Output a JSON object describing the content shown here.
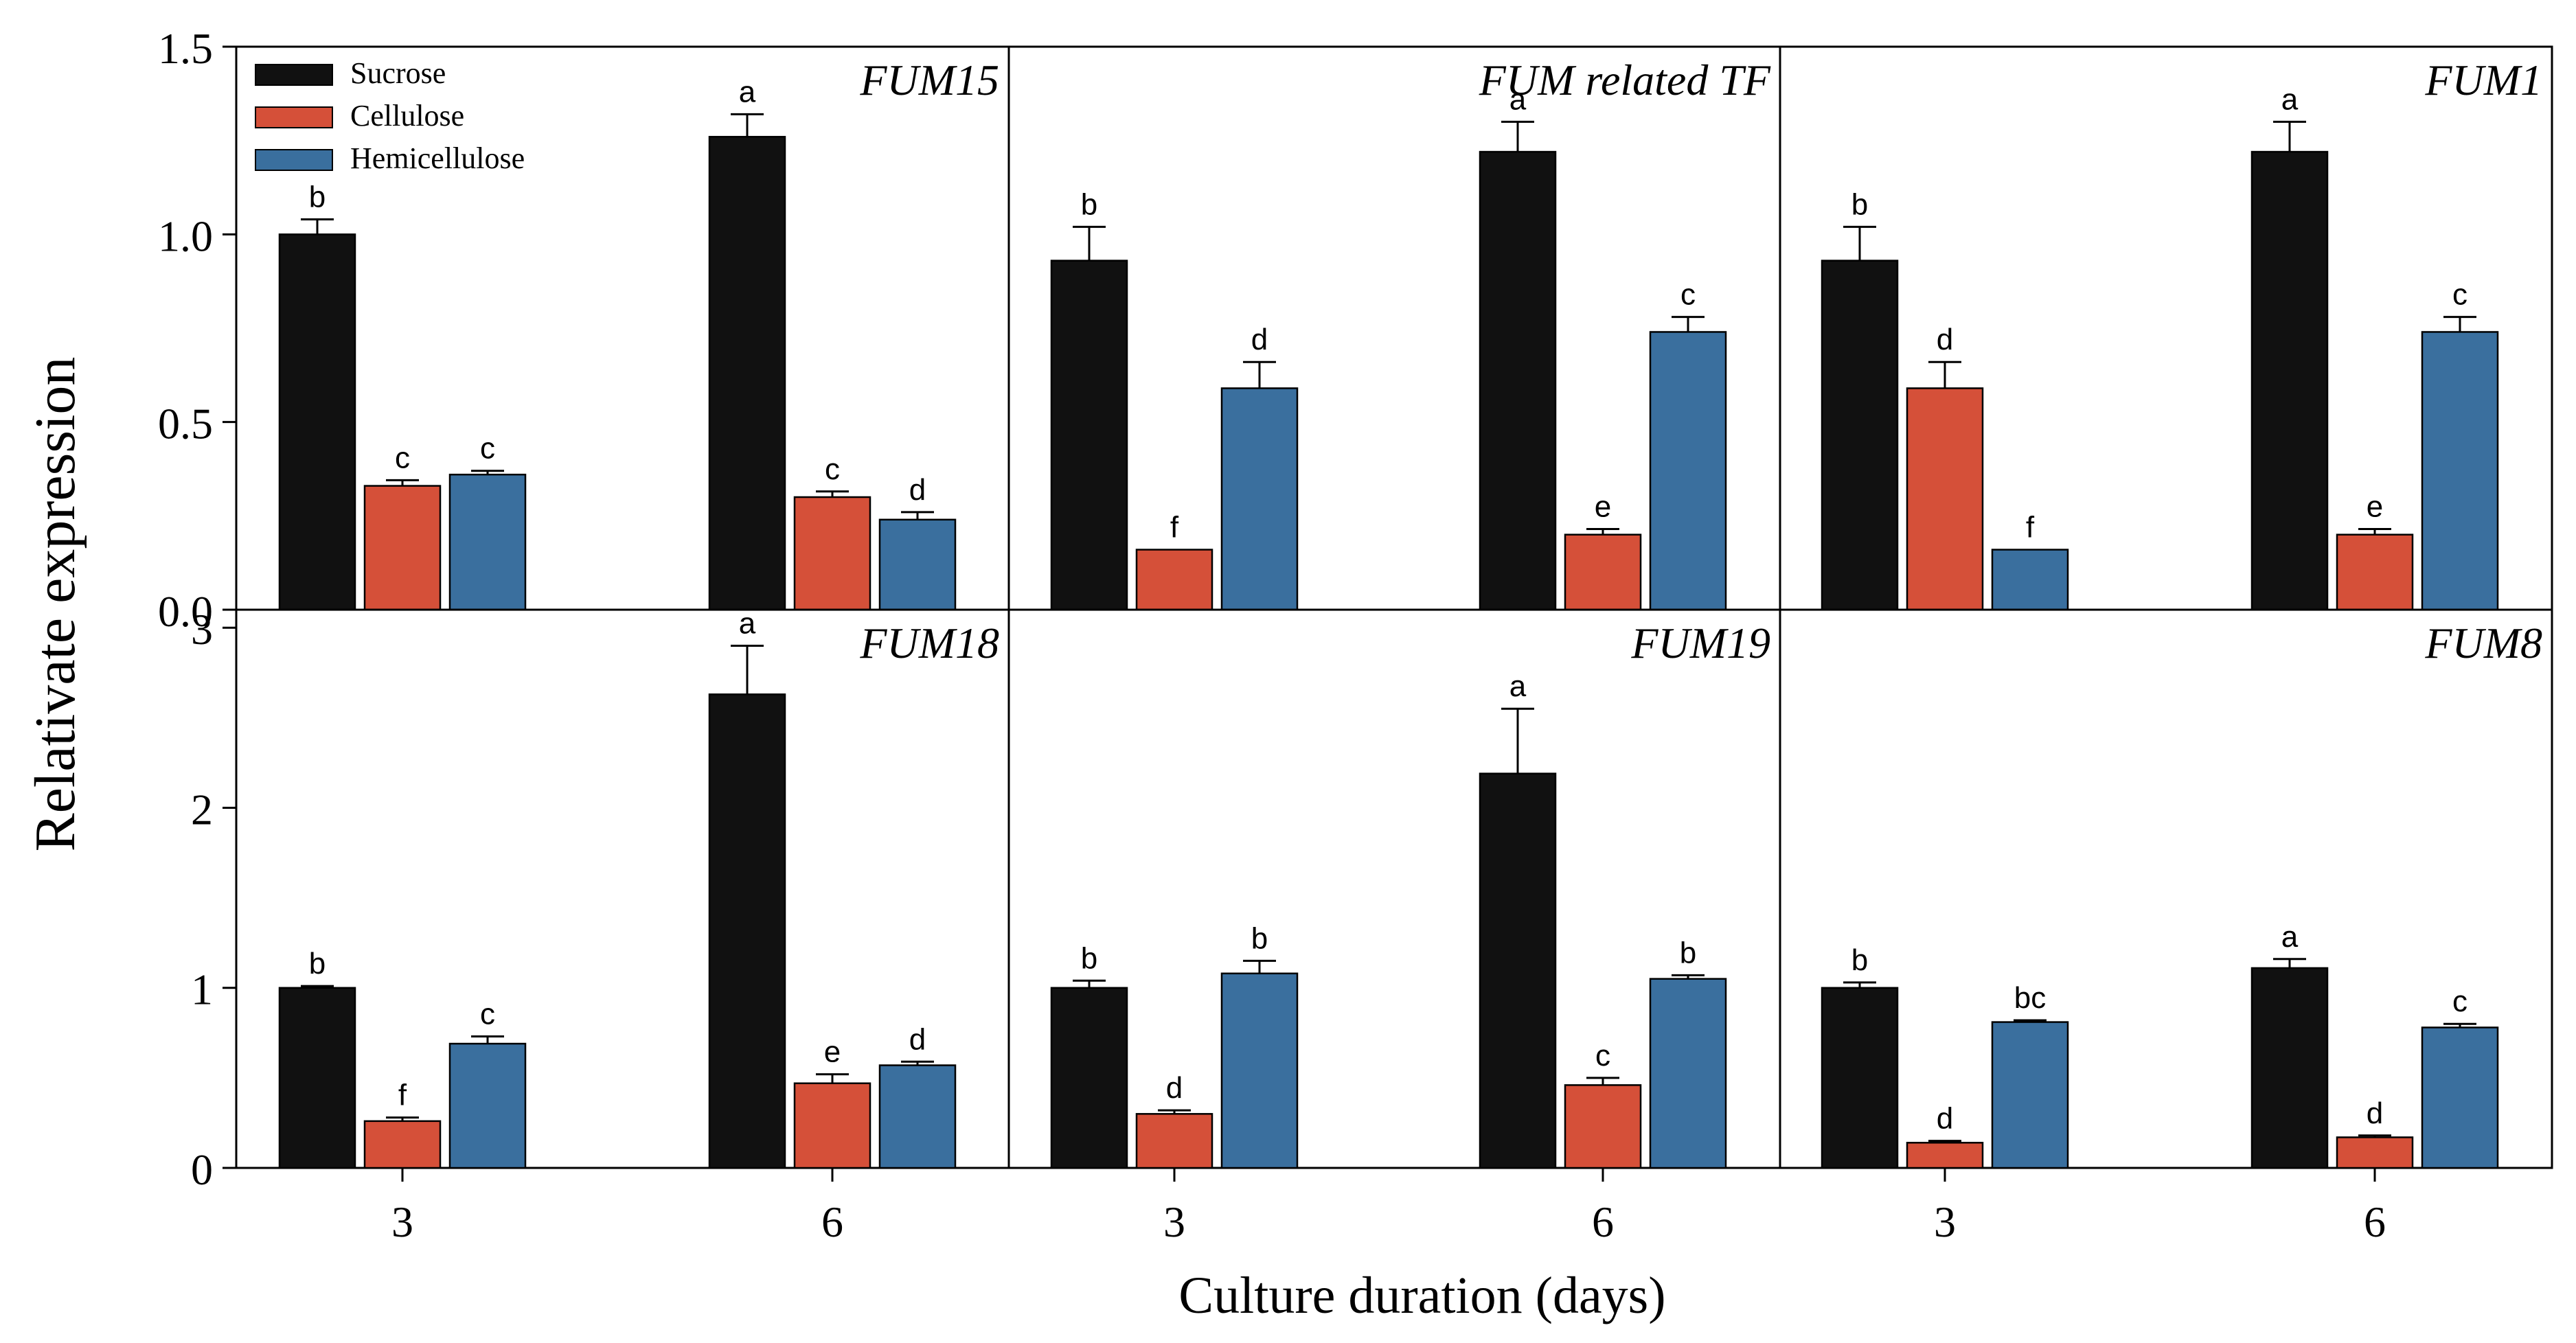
{
  "chart_data": {
    "type": "bar",
    "ylabel": "Relativate expression",
    "xlabel": "Culture duration (days)",
    "legend_position": "top-left",
    "categories": [
      "3",
      "6"
    ],
    "series_names": [
      "Sucrose",
      "Cellulose",
      "Hemicellulose"
    ],
    "colors": {
      "Sucrose": "#111111",
      "Cellulose": "#D55039",
      "Hemicellulose": "#3A6F9E"
    },
    "rows": [
      {
        "ylim": [
          0,
          1.5
        ],
        "yticks": [
          "0.0",
          "0.5",
          "1.0",
          "1.5"
        ],
        "panels": [
          {
            "title": "FUM15",
            "series": [
              {
                "name": "Sucrose",
                "values": [
                  1.0,
                  1.26
                ],
                "errors": [
                  0.04,
                  0.06
                ],
                "letters": [
                  "b",
                  "a"
                ]
              },
              {
                "name": "Cellulose",
                "values": [
                  0.33,
                  0.3
                ],
                "errors": [
                  0.015,
                  0.015
                ],
                "letters": [
                  "c",
                  "c"
                ]
              },
              {
                "name": "Hemicellulose",
                "values": [
                  0.36,
                  0.24
                ],
                "errors": [
                  0.01,
                  0.02
                ],
                "letters": [
                  "c",
                  "d"
                ]
              }
            ]
          },
          {
            "title": "FUM related TF",
            "series": [
              {
                "name": "Sucrose",
                "values": [
                  0.93,
                  1.22
                ],
                "errors": [
                  0.09,
                  0.08
                ],
                "letters": [
                  "b",
                  "a"
                ]
              },
              {
                "name": "Cellulose",
                "values": [
                  0.16,
                  0.2
                ],
                "errors": [
                  0.0,
                  0.015
                ],
                "letters": [
                  "f",
                  "e"
                ]
              },
              {
                "name": "Hemicellulose",
                "values": [
                  0.59,
                  0.74
                ],
                "errors": [
                  0.07,
                  0.04
                ],
                "letters": [
                  "d",
                  "c"
                ]
              }
            ]
          },
          {
            "title": "FUM1",
            "series": [
              {
                "name": "Sucrose",
                "values": [
                  0.93,
                  1.22
                ],
                "errors": [
                  0.09,
                  0.08
                ],
                "letters": [
                  "b",
                  "a"
                ]
              },
              {
                "name": "Cellulose",
                "values": [
                  0.59,
                  0.2
                ],
                "errors": [
                  0.07,
                  0.015
                ],
                "letters": [
                  "d",
                  "e"
                ]
              },
              {
                "name": "Hemicellulose",
                "values": [
                  0.16,
                  0.74
                ],
                "errors": [
                  0.0,
                  0.04
                ],
                "letters": [
                  "f",
                  "c"
                ]
              }
            ]
          }
        ]
      },
      {
        "ylim": [
          0,
          3.1
        ],
        "yticks": [
          "0",
          "1",
          "2",
          "3"
        ],
        "panels": [
          {
            "title": "FUM18",
            "series": [
              {
                "name": "Sucrose",
                "values": [
                  1.0,
                  2.63
                ],
                "errors": [
                  0.01,
                  0.27
                ],
                "letters": [
                  "b",
                  "a"
                ]
              },
              {
                "name": "Cellulose",
                "values": [
                  0.26,
                  0.47
                ],
                "errors": [
                  0.02,
                  0.05
                ],
                "letters": [
                  "f",
                  "e"
                ]
              },
              {
                "name": "Hemicellulose",
                "values": [
                  0.69,
                  0.57
                ],
                "errors": [
                  0.04,
                  0.02
                ],
                "letters": [
                  "c",
                  "d"
                ]
              }
            ]
          },
          {
            "title": "FUM19",
            "series": [
              {
                "name": "Sucrose",
                "values": [
                  1.0,
                  2.19
                ],
                "errors": [
                  0.04,
                  0.36
                ],
                "letters": [
                  "b",
                  "a"
                ]
              },
              {
                "name": "Cellulose",
                "values": [
                  0.3,
                  0.46
                ],
                "errors": [
                  0.02,
                  0.04
                ],
                "letters": [
                  "d",
                  "c"
                ]
              },
              {
                "name": "Hemicellulose",
                "values": [
                  1.08,
                  1.05
                ],
                "errors": [
                  0.07,
                  0.02
                ],
                "letters": [
                  "b",
                  "b"
                ]
              }
            ]
          },
          {
            "title": "FUM8",
            "series": [
              {
                "name": "Sucrose",
                "values": [
                  1.0,
                  1.11
                ],
                "errors": [
                  0.03,
                  0.05
                ],
                "letters": [
                  "b",
                  "a"
                ]
              },
              {
                "name": "Cellulose",
                "values": [
                  0.14,
                  0.17
                ],
                "errors": [
                  0.01,
                  0.01
                ],
                "letters": [
                  "d",
                  "d"
                ]
              },
              {
                "name": "Hemicellulose",
                "values": [
                  0.81,
                  0.78
                ],
                "errors": [
                  0.01,
                  0.02
                ],
                "letters": [
                  "bc",
                  "c"
                ]
              }
            ]
          }
        ]
      }
    ]
  }
}
